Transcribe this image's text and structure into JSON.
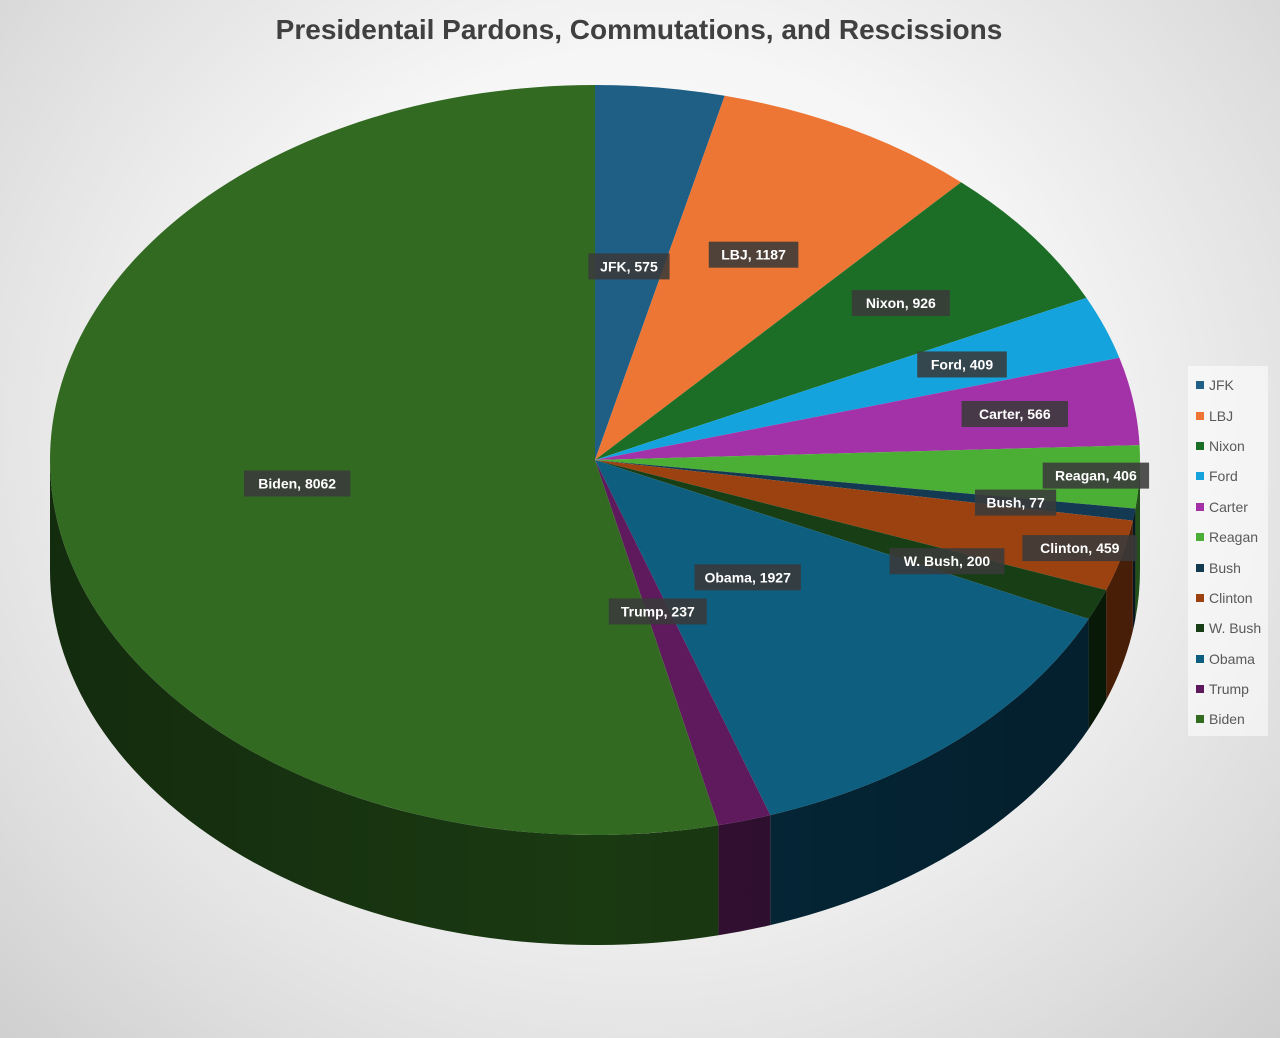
{
  "chart_data": {
    "type": "pie",
    "title": "Presidentail Pardons, Commutations, and Rescissions",
    "slices": [
      {
        "label": "JFK",
        "value": 575,
        "color": "#1f5f85",
        "side": "#133b53"
      },
      {
        "label": "LBJ",
        "value": 1187,
        "color": "#ed7634",
        "side": "#93481f"
      },
      {
        "label": "Nixon",
        "value": 926,
        "color": "#1c6e27",
        "side": "#104316"
      },
      {
        "label": "Ford",
        "value": 409,
        "color": "#14a3dc",
        "side": "#0b6488"
      },
      {
        "label": "Carter",
        "value": 566,
        "color": "#a331a8",
        "side": "#621d65"
      },
      {
        "label": "Reagan",
        "value": 406,
        "color": "#4caf35",
        "side": "#2e6b20"
      },
      {
        "label": "Bush",
        "value": 77,
        "color": "#133a52",
        "side": "#0a1f2c"
      },
      {
        "label": "Clinton",
        "value": 459,
        "color": "#9c4210",
        "side": "#5e2709"
      },
      {
        "label": "W. Bush",
        "value": 200,
        "color": "#173e15",
        "side": "#0c200b"
      },
      {
        "label": "Obama",
        "value": 1927,
        "color": "#0d5e7f",
        "side": "#05283a"
      },
      {
        "label": "Trump",
        "value": 237,
        "color": "#5e1a5c",
        "side": "#331033"
      },
      {
        "label": "Biden",
        "value": 8062,
        "color": "#336a22",
        "side": "#1a3a12"
      }
    ],
    "data_labels": [
      "JFK, 575",
      "LBJ, 1187",
      "Nixon, 926",
      "Ford, 409",
      "Carter, 566",
      "Reagan, 406",
      "Bush, 77",
      "Clinton, 459",
      "W. Bush, 200",
      "Obama, 1927",
      "Trump, 237",
      "Biden, 8062"
    ],
    "legend_position": "right",
    "start_angle": "12 o'clock, clockwise",
    "style": "3d"
  }
}
